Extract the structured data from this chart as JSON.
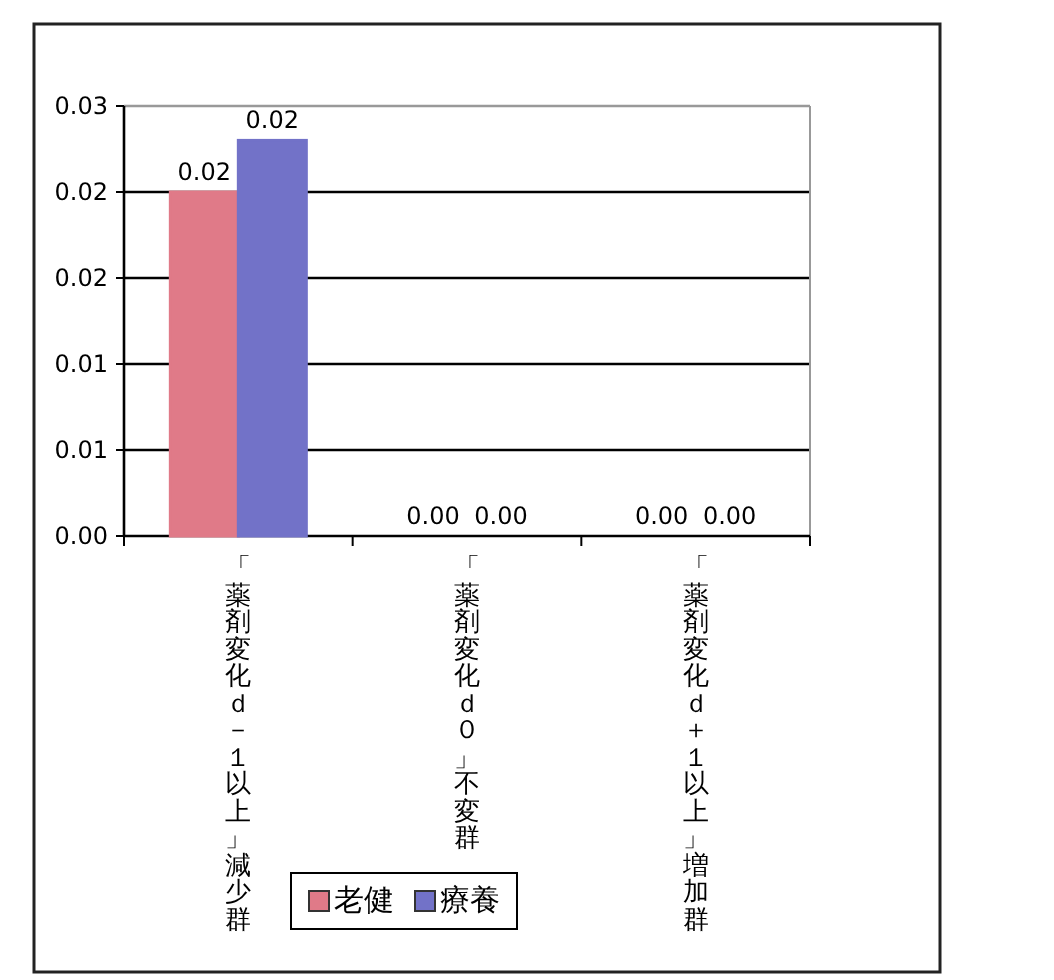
{
  "chart_data": {
    "type": "bar",
    "categories": [
      "「薬剤変化ｄ－１以上」減少群",
      "「薬剤変化ｄ０」不変群",
      "「薬剤変化ｄ＋１以上」増加群"
    ],
    "series": [
      {
        "name": "老健",
        "color": "#e07a88",
        "values": [
          0.02,
          0,
          0
        ]
      },
      {
        "name": "療養",
        "color": "#7272c8",
        "values": [
          0.023,
          0,
          0
        ]
      }
    ],
    "ylim": [
      0,
      0.025
    ],
    "yticks": [
      {
        "value": 0,
        "label": "0.00"
      },
      {
        "value": 0.005,
        "label": "0.01"
      },
      {
        "value": 0.01,
        "label": "0.01"
      },
      {
        "value": 0.015,
        "label": "0.02"
      },
      {
        "value": 0.02,
        "label": "0.02"
      },
      {
        "value": 0.025,
        "label": "0.03"
      }
    ],
    "value_labels": [
      [
        "0.02",
        "0.00",
        "0.00"
      ],
      [
        "0.02",
        "0.00",
        "0.00"
      ]
    ],
    "grid": "y",
    "legend": "bottom"
  }
}
